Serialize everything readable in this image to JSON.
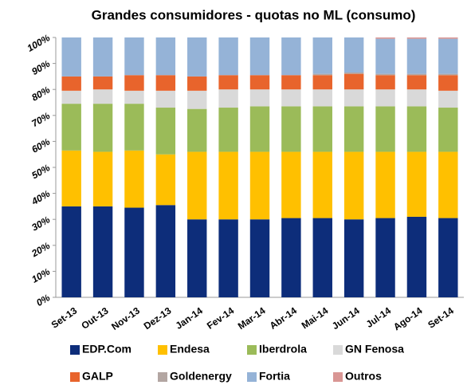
{
  "chart_data": {
    "type": "stacked_bar",
    "title": "Grandes consumidores - quotas no ML (consumo)",
    "categories": [
      "Set-13",
      "Out-13",
      "Nov-13",
      "Dez-13",
      "Jan-14",
      "Fev-14",
      "Mar-14",
      "Abr-14",
      "Mai-14",
      "Jun-14",
      "Jul-14",
      "Ago-14",
      "Set-14"
    ],
    "series": [
      {
        "name": "EDP.Com",
        "color": "#0d2d7a",
        "values": [
          35,
          35,
          34.5,
          35.5,
          30,
          30,
          30,
          30.5,
          30.5,
          30,
          30.5,
          31,
          30.5
        ]
      },
      {
        "name": "Endesa",
        "color": "#ffc000",
        "values": [
          21.5,
          21,
          22,
          19.5,
          26,
          26,
          26,
          25.5,
          25.5,
          26,
          25.5,
          25,
          25.5
        ]
      },
      {
        "name": "Iberdrola",
        "color": "#9bbb59",
        "values": [
          18,
          18.5,
          18,
          18,
          16.5,
          17,
          17.5,
          17.5,
          17.5,
          17.5,
          17.5,
          17.5,
          17
        ]
      },
      {
        "name": "GN Fenosa",
        "color": "#d9d9d9",
        "values": [
          5,
          5.5,
          5,
          6.5,
          7,
          7,
          6.5,
          6.5,
          6.5,
          6.5,
          6.5,
          6.5,
          6.5
        ]
      },
      {
        "name": "GALP",
        "color": "#e8642c",
        "values": [
          5.5,
          5,
          6,
          6,
          5.5,
          5.5,
          5.5,
          5.5,
          5.5,
          6,
          5.5,
          5.5,
          6
        ]
      },
      {
        "name": "Goldenergy",
        "color": "#b3a6a2",
        "values": [
          0,
          0,
          0,
          0,
          0,
          0,
          0,
          0,
          0.5,
          0.5,
          0.5,
          0.5,
          0.5
        ]
      },
      {
        "name": "Fortia",
        "color": "#95b3d7",
        "values": [
          15,
          15,
          14.5,
          14.5,
          15,
          14.5,
          14.5,
          14.5,
          14,
          13.5,
          13.5,
          13.5,
          13.5
        ]
      },
      {
        "name": "Outros",
        "color": "#d99694",
        "values": [
          0,
          0,
          0,
          0,
          0,
          0,
          0,
          0,
          0,
          0,
          0.5,
          0.5,
          0.5
        ]
      }
    ],
    "ylim": [
      0,
      100
    ],
    "yticks": [
      {
        "value": 0,
        "label": "0%"
      },
      {
        "value": 10,
        "label": "10%"
      },
      {
        "value": 20,
        "label": "20%"
      },
      {
        "value": 30,
        "label": "30%"
      },
      {
        "value": 40,
        "label": "40%"
      },
      {
        "value": 50,
        "label": "50%"
      },
      {
        "value": 60,
        "label": "60%"
      },
      {
        "value": 70,
        "label": "70%"
      },
      {
        "value": 80,
        "label": "80%"
      },
      {
        "value": 90,
        "label": "90%"
      },
      {
        "value": 100,
        "label": "100%"
      }
    ],
    "grid": false
  }
}
